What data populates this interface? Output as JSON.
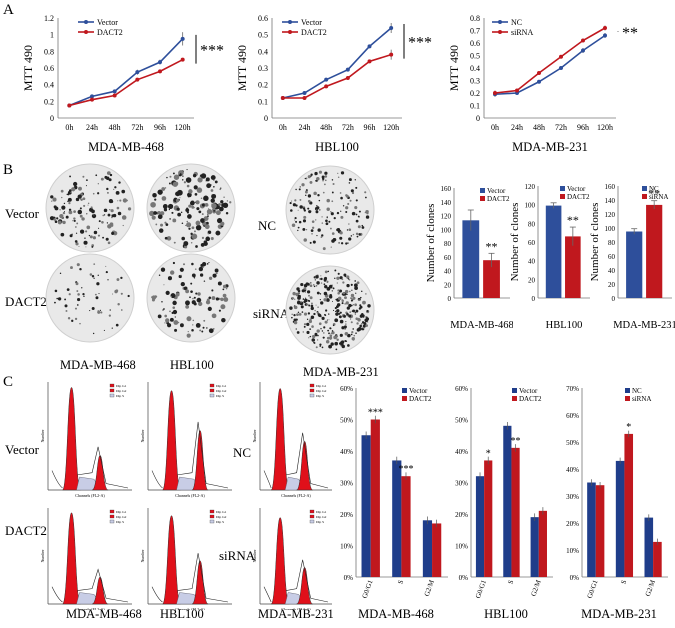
{
  "panels": {
    "a": "A",
    "b": "B",
    "c": "C"
  },
  "colors": {
    "blue": "#2e4f9b",
    "red": "#c0181e",
    "navy": "#1f3d8a",
    "gray": "#666666"
  },
  "panelA": {
    "ylabel": "MTT 490",
    "ylabel_parts": [
      "MTT",
      "490"
    ],
    "sig": "***",
    "chart_data": [
      {
        "type": "line",
        "title": "MDA-MB-468",
        "categories": [
          "0h",
          "24h",
          "48h",
          "72h",
          "96h",
          "120h"
        ],
        "series": [
          {
            "name": "Vector",
            "values": [
              0.15,
              0.26,
              0.32,
              0.55,
              0.67,
              0.95
            ],
            "err": [
              0.01,
              0.01,
              0.02,
              0.03,
              0.03,
              0.08
            ]
          },
          {
            "name": "DACT2",
            "values": [
              0.15,
              0.22,
              0.27,
              0.46,
              0.56,
              0.7
            ],
            "err": [
              0.01,
              0.01,
              0.02,
              0.02,
              0.02,
              0.02
            ]
          }
        ],
        "ylim": [
          0,
          1.2
        ],
        "yticks": [
          0,
          0.2,
          0.4,
          0.6,
          0.8,
          1,
          1.2
        ],
        "ylabels": [
          "0",
          "0.2",
          "0.4",
          "0.6",
          "0.8",
          "1",
          "1.2"
        ],
        "sig": "***"
      },
      {
        "type": "line",
        "title": "HBL100",
        "categories": [
          "0h",
          "24h",
          "48h",
          "72h",
          "96h",
          "120h"
        ],
        "series": [
          {
            "name": "Vector",
            "values": [
              0.12,
              0.15,
              0.23,
              0.29,
              0.43,
              0.54
            ],
            "err": [
              0.01,
              0.01,
              0.01,
              0.01,
              0.01,
              0.03
            ]
          },
          {
            "name": "DACT2",
            "values": [
              0.12,
              0.12,
              0.19,
              0.24,
              0.34,
              0.38
            ],
            "err": [
              0.01,
              0.01,
              0.01,
              0.01,
              0.01,
              0.03
            ]
          }
        ],
        "ylim": [
          0,
          0.6
        ],
        "yticks": [
          0,
          0.1,
          0.2,
          0.3,
          0.4,
          0.5,
          0.6
        ],
        "ylabels": [
          "0",
          "0.1",
          "0.2",
          "0.3",
          "0.4",
          "0.5",
          "0.6"
        ],
        "sig": "***"
      },
      {
        "type": "line",
        "title": "MDA-MB-231",
        "categories": [
          "0h",
          "24h",
          "48h",
          "72h",
          "96h",
          "120h"
        ],
        "series": [
          {
            "name": "NC",
            "values": [
              0.19,
              0.2,
              0.29,
              0.4,
              0.54,
              0.66
            ],
            "err": [
              0.02,
              0.01,
              0.01,
              0.01,
              0.02,
              0.02
            ]
          },
          {
            "name": "siRNA",
            "values": [
              0.2,
              0.22,
              0.36,
              0.49,
              0.62,
              0.72
            ],
            "err": [
              0.02,
              0.01,
              0.01,
              0.01,
              0.01,
              0.02
            ]
          }
        ],
        "ylim": [
          0,
          0.8
        ],
        "yticks": [
          0,
          0.1,
          0.2,
          0.3,
          0.4,
          0.5,
          0.6,
          0.7,
          0.8
        ],
        "ylabels": [
          "0",
          "0.1",
          "0.2",
          "0.3",
          "0.4",
          "0.5",
          "0.6",
          "0.7",
          "0.8"
        ],
        "sig": "**"
      }
    ]
  },
  "panelB": {
    "row_labels": [
      "Vector",
      "DACT2"
    ],
    "nc_label": "NC",
    "sirna_label": "siRNA",
    "cell_titles": [
      "MDA-MB-468",
      "HBL100",
      "MDA-MB-231"
    ],
    "ylabel": "Number of clones",
    "chart_data": [
      {
        "type": "bar",
        "title": "MDA-MB-468",
        "categories": [
          "Vector",
          "DACT2"
        ],
        "values": [
          113,
          55
        ],
        "err": [
          15,
          10
        ],
        "ylim": [
          0,
          160
        ],
        "yticks": [
          0,
          20,
          40,
          60,
          80,
          100,
          120,
          140,
          160
        ],
        "ylabels": [
          "0",
          "20",
          "40",
          "60",
          "80",
          "100",
          "120",
          "140",
          "160"
        ],
        "sig": "**"
      },
      {
        "type": "bar",
        "title": "HBL100",
        "categories": [
          "Vector",
          "DACT2"
        ],
        "values": [
          99,
          66
        ],
        "err": [
          3,
          10
        ],
        "ylim": [
          0,
          120
        ],
        "yticks": [
          0,
          20,
          40,
          60,
          80,
          100,
          120
        ],
        "ylabels": [
          "0",
          "20",
          "40",
          "60",
          "80",
          "100",
          "120"
        ],
        "sig": "**"
      },
      {
        "type": "bar",
        "title": "MDA-MB-231",
        "categories": [
          "NC",
          "siRNA"
        ],
        "values": [
          95,
          133
        ],
        "err": [
          4,
          6
        ],
        "ylim": [
          0,
          160
        ],
        "yticks": [
          0,
          20,
          40,
          60,
          80,
          100,
          120,
          140,
          160
        ],
        "ylabels": [
          "0",
          "20",
          "40",
          "60",
          "80",
          "100",
          "120",
          "140",
          "160"
        ],
        "sig": "**"
      }
    ]
  },
  "panelC": {
    "row_labels": [
      "Vector",
      "DACT2"
    ],
    "nc_label": "NC",
    "sirna_label": "siRNA",
    "cell_titles": [
      "MDA-MB-468",
      "HBL100",
      "MDA-MB-231"
    ],
    "flow_xlabel": "Channels (FL2-A)",
    "flow_ylabel": "Number",
    "flow_legend": [
      "Dip G1",
      "Dip G2",
      "Dip S"
    ],
    "chart_data": [
      {
        "type": "bar",
        "title": "MDA-MB-468",
        "categories": [
          "G0/G1",
          "S",
          "G2/M"
        ],
        "series": [
          {
            "name": "Vector",
            "values": [
              45,
              37,
              18
            ]
          },
          {
            "name": "DACT2",
            "values": [
              50,
              32,
              17
            ]
          }
        ],
        "ylim": [
          0,
          60
        ],
        "yticks": [
          0,
          10,
          20,
          30,
          40,
          50,
          60
        ],
        "ylabels": [
          "0%",
          "10%",
          "20%",
          "30%",
          "40%",
          "50%",
          "60%"
        ],
        "sigs": [
          "***",
          "***",
          ""
        ]
      },
      {
        "type": "bar",
        "title": "HBL100",
        "categories": [
          "G0/G1",
          "S",
          "G2/M"
        ],
        "series": [
          {
            "name": "Vector",
            "values": [
              32,
              48,
              19
            ]
          },
          {
            "name": "DACT2",
            "values": [
              37,
              41,
              21
            ]
          }
        ],
        "ylim": [
          0,
          60
        ],
        "yticks": [
          0,
          10,
          20,
          30,
          40,
          50,
          60
        ],
        "ylabels": [
          "0%",
          "10%",
          "20%",
          "30%",
          "40%",
          "50%",
          "60%"
        ],
        "sigs": [
          "*",
          "**",
          ""
        ]
      },
      {
        "type": "bar",
        "title": "MDA-MB-231",
        "categories": [
          "G0/G1",
          "S",
          "G2/M"
        ],
        "series": [
          {
            "name": "NC",
            "values": [
              35,
              43,
              22
            ]
          },
          {
            "name": "siRNA",
            "values": [
              34,
              53,
              13
            ]
          }
        ],
        "ylim": [
          0,
          70
        ],
        "yticks": [
          0,
          10,
          20,
          30,
          40,
          50,
          60,
          70
        ],
        "ylabels": [
          "0%",
          "10%",
          "20%",
          "30%",
          "40%",
          "50%",
          "60%",
          "70%"
        ],
        "sigs": [
          "",
          "*",
          ""
        ]
      }
    ]
  }
}
